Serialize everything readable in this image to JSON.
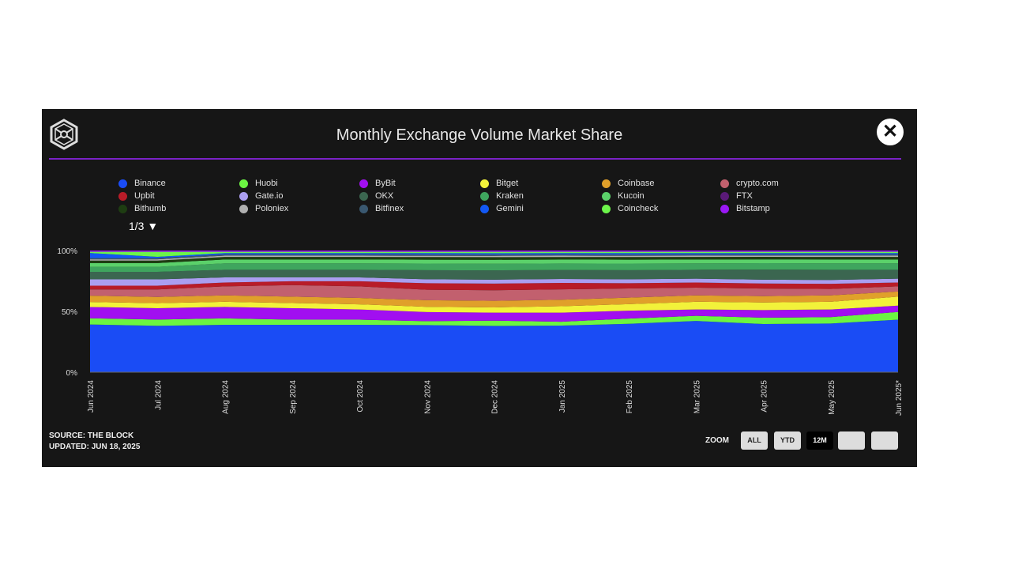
{
  "header": {
    "title": "Monthly Exchange Volume Market Share",
    "close_label": "✕"
  },
  "legend_pager": "1/3 ▼",
  "footer": {
    "source": "SOURCE: THE BLOCK",
    "updated": "UPDATED: JUN 18, 2025"
  },
  "zoom": {
    "label": "ZOOM",
    "buttons": [
      "ALL",
      "YTD",
      "12M",
      "",
      ""
    ],
    "selected": "12M"
  },
  "chart_data": {
    "type": "area",
    "stacked": "percent",
    "title": "Monthly Exchange Volume Market Share",
    "x": [
      "Jun 2024",
      "Jul 2024",
      "Aug 2024",
      "Sep 2024",
      "Oct 2024",
      "Nov 2024",
      "Dec 2024",
      "Jan 2025",
      "Feb 2025",
      "Mar 2025",
      "Apr 2025",
      "May 2025",
      "Jun 2025*"
    ],
    "yticks": [
      "0%",
      "50%",
      "100%"
    ],
    "ylim": [
      0,
      100
    ],
    "legend_placement": "top",
    "series": [
      {
        "name": "Binance",
        "color": "#1a4cf5",
        "values": [
          38,
          37,
          37,
          37,
          37,
          36,
          35,
          36,
          37,
          40,
          38,
          38,
          41
        ]
      },
      {
        "name": "Huobi",
        "color": "#6bf542",
        "values": [
          5,
          5,
          5,
          4,
          4,
          3,
          4,
          3,
          4,
          4,
          5,
          5,
          6
        ]
      },
      {
        "name": "ByBit",
        "color": "#a10ff0",
        "values": [
          9,
          9,
          9,
          9,
          8,
          7,
          6,
          7,
          6,
          5,
          6,
          6,
          5
        ]
      },
      {
        "name": "Bitget",
        "color": "#f2f23a",
        "values": [
          4,
          4,
          4,
          4,
          4,
          4,
          4,
          5,
          5,
          6,
          6,
          6,
          7
        ]
      },
      {
        "name": "Coinbase",
        "color": "#e0a02a",
        "values": [
          5,
          5,
          5,
          5,
          5,
          5,
          5,
          5,
          5,
          5,
          5,
          5,
          4
        ]
      },
      {
        "name": "crypto.com",
        "color": "#c2606e",
        "values": [
          5,
          6,
          7,
          9,
          9,
          8,
          8,
          8,
          7,
          6,
          6,
          5,
          4
        ]
      },
      {
        "name": "Upbit",
        "color": "#b81c28",
        "values": [
          3,
          3,
          3,
          3,
          4,
          5,
          5,
          5,
          4,
          4,
          4,
          4,
          3
        ]
      },
      {
        "name": "Gate.io",
        "color": "#ab9ef0",
        "values": [
          5,
          5,
          4,
          3,
          3,
          3,
          3,
          3,
          3,
          3,
          3,
          3,
          3
        ]
      },
      {
        "name": "OKX",
        "color": "#3b6650",
        "values": [
          6,
          6,
          6,
          6,
          6,
          7,
          7,
          7,
          7,
          7,
          8,
          8,
          7
        ]
      },
      {
        "name": "Kraken",
        "color": "#3fa55e",
        "values": [
          4,
          4,
          5,
          5,
          5,
          5,
          5,
          5,
          5,
          5,
          5,
          5,
          5
        ]
      },
      {
        "name": "Kucoin",
        "color": "#5bd16a",
        "values": [
          3,
          3,
          3,
          3,
          3,
          3,
          3,
          3,
          3,
          3,
          3,
          3,
          3
        ]
      },
      {
        "name": "FTX",
        "color": "#5a1a78",
        "values": [
          0,
          0,
          0,
          0,
          0,
          0,
          0,
          0,
          0,
          0,
          0,
          0,
          0
        ]
      },
      {
        "name": "Bithumb",
        "color": "#1e3d12",
        "values": [
          2,
          2,
          2,
          2,
          2,
          2,
          2,
          2,
          2,
          2,
          2,
          2,
          2
        ]
      },
      {
        "name": "Poloniex",
        "color": "#b0b0b0",
        "values": [
          1,
          1,
          1,
          1,
          1,
          1,
          1,
          1,
          1,
          1,
          1,
          1,
          1
        ]
      },
      {
        "name": "Bitfinex",
        "color": "#3a5870",
        "values": [
          1,
          1,
          1,
          1,
          1,
          1,
          1,
          1,
          1,
          1,
          1,
          1,
          1
        ]
      },
      {
        "name": "Gemini",
        "color": "#1258f5",
        "values": [
          4,
          1,
          1,
          1,
          1,
          1,
          1,
          1,
          1,
          1,
          1,
          1,
          1
        ]
      },
      {
        "name": "Coincheck",
        "color": "#6cf54a",
        "values": [
          1,
          4,
          1,
          1,
          1,
          1,
          1,
          1,
          1,
          1,
          1,
          1,
          1
        ]
      },
      {
        "name": "Bitstamp",
        "color": "#9a18f5",
        "values": [
          1,
          1,
          1,
          1,
          1,
          1,
          1,
          1,
          1,
          1,
          1,
          1,
          1
        ]
      }
    ]
  }
}
